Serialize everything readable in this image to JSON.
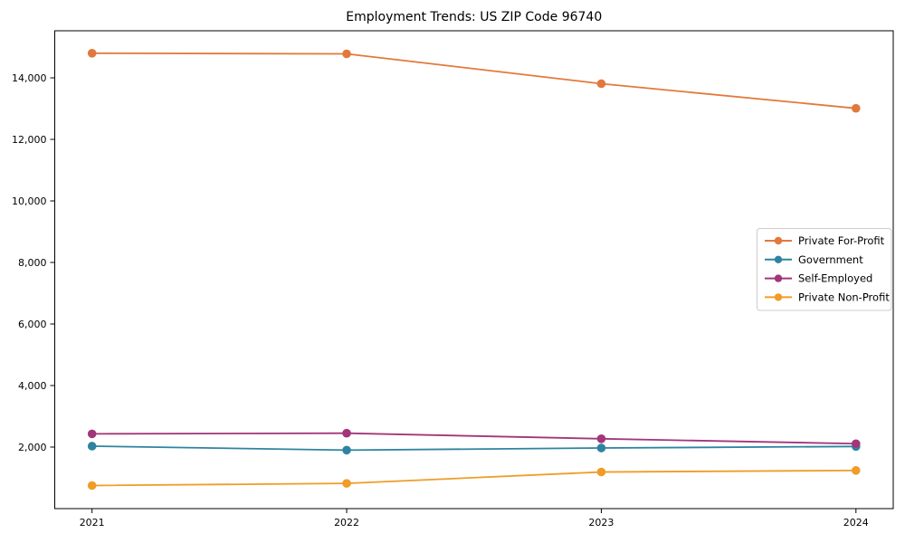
{
  "figure": {
    "background": "#ffffff",
    "spine_color": "#000000",
    "tick_color": "#000000",
    "legend_border_color": "#cccccc",
    "legend_background": "#ffffff"
  },
  "chart_data": {
    "type": "line",
    "title": "Employment Trends: US ZIP Code 96740",
    "xlabel": "",
    "ylabel": "",
    "categories": [
      "2021",
      "2022",
      "2023",
      "2024"
    ],
    "series": [
      {
        "name": "Private For-Profit",
        "color": "#e2793c",
        "values": [
          14800,
          14780,
          13810,
          13010
        ]
      },
      {
        "name": "Government",
        "color": "#2e84a0",
        "values": [
          2030,
          1900,
          1970,
          2020
        ]
      },
      {
        "name": "Self-Employed",
        "color": "#a23678",
        "values": [
          2430,
          2450,
          2270,
          2110
        ]
      },
      {
        "name": "Private Non-Profit",
        "color": "#f09c28",
        "values": [
          750,
          820,
          1190,
          1240
        ]
      }
    ],
    "ylim": [
      0,
      15530
    ],
    "yticks": [
      2000,
      4000,
      6000,
      8000,
      10000,
      12000,
      14000
    ],
    "grid": false,
    "marker": "circle",
    "legend_position": "center-right"
  }
}
